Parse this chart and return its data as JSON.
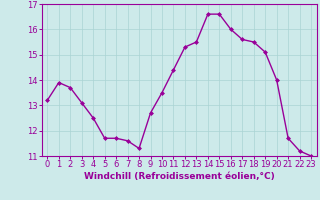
{
  "x": [
    0,
    1,
    2,
    3,
    4,
    5,
    6,
    7,
    8,
    9,
    10,
    11,
    12,
    13,
    14,
    15,
    16,
    17,
    18,
    19,
    20,
    21,
    22,
    23
  ],
  "y": [
    13.2,
    13.9,
    13.7,
    13.1,
    12.5,
    11.7,
    11.7,
    11.6,
    11.3,
    12.7,
    13.5,
    14.4,
    15.3,
    15.5,
    16.6,
    16.6,
    16.0,
    15.6,
    15.5,
    15.1,
    14.0,
    11.7,
    11.2,
    11.0
  ],
  "line_color": "#990099",
  "marker": "D",
  "marker_size": 2,
  "bg_color": "#cdeaea",
  "grid_color": "#aad4d4",
  "xlabel": "Windchill (Refroidissement éolien,°C)",
  "xlabel_color": "#990099",
  "tick_color": "#990099",
  "spine_color": "#990099",
  "ylim": [
    11,
    17
  ],
  "xlim": [
    -0.5,
    23.5
  ],
  "yticks": [
    11,
    12,
    13,
    14,
    15,
    16,
    17
  ],
  "xticks": [
    0,
    1,
    2,
    3,
    4,
    5,
    6,
    7,
    8,
    9,
    10,
    11,
    12,
    13,
    14,
    15,
    16,
    17,
    18,
    19,
    20,
    21,
    22,
    23
  ],
  "xlabel_fontsize": 6.5,
  "tick_fontsize": 6,
  "linewidth": 1.0
}
